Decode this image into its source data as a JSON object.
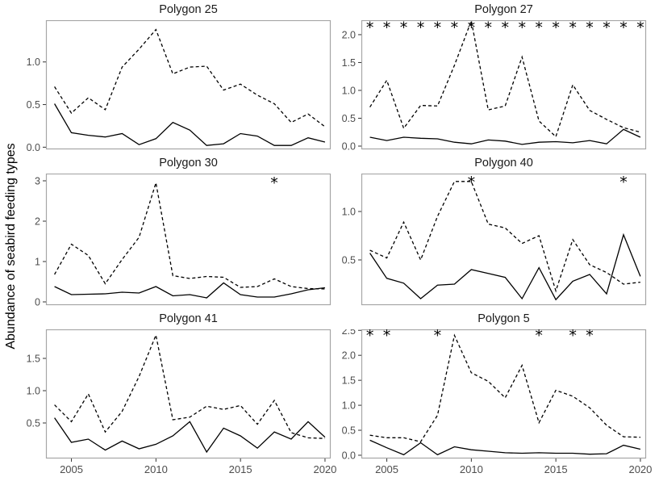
{
  "figure": {
    "background": "#ffffff"
  },
  "chart_data": {
    "type": "line",
    "ylabel": "Abundance of seabird feeding types",
    "x": [
      2004,
      2005,
      2006,
      2007,
      2008,
      2009,
      2010,
      2011,
      2012,
      2013,
      2014,
      2015,
      2016,
      2017,
      2018,
      2019,
      2020
    ],
    "x_ticks": [
      2005,
      2010,
      2015,
      2020
    ],
    "x_tick_labels": [
      "2005",
      "2010",
      "2015",
      "2020"
    ],
    "legend": "none",
    "grid": false,
    "significance_marker": "*",
    "style": {
      "line_color": "#000000",
      "panel_border_color": "#a6a6a6",
      "tick_color": "#333333",
      "tick_label_color": "#4d4d4d",
      "title_color": "#1a1a1a",
      "background": "#ffffff"
    },
    "panels": [
      {
        "title": "Polygon 25",
        "y_ticks": [
          0.0,
          0.5,
          1.0
        ],
        "y_tick_labels": [
          "0.0",
          "0.5",
          "1.0"
        ],
        "ylim": [
          -0.025,
          1.49
        ],
        "asterisk_years": [],
        "asterisk_y": 1.4,
        "series": [
          {
            "name": "dashed",
            "linestyle": "dashed",
            "values": [
              0.71,
              0.4,
              0.58,
              0.44,
              0.94,
              1.15,
              1.38,
              0.86,
              0.94,
              0.95,
              0.67,
              0.74,
              0.61,
              0.51,
              0.29,
              0.39,
              0.24
            ]
          },
          {
            "name": "solid",
            "linestyle": "solid",
            "values": [
              0.51,
              0.17,
              0.14,
              0.12,
              0.16,
              0.03,
              0.1,
              0.29,
              0.2,
              0.02,
              0.04,
              0.16,
              0.13,
              0.02,
              0.02,
              0.11,
              0.06
            ]
          }
        ]
      },
      {
        "title": "Polygon 27",
        "y_ticks": [
          0.0,
          0.5,
          1.0,
          1.5,
          2.0
        ],
        "y_tick_labels": [
          "0.0",
          "0.5",
          "1.0",
          "1.5",
          "2.0"
        ],
        "ylim": [
          -0.058,
          2.26
        ],
        "asterisk_years": [
          2004,
          2005,
          2006,
          2007,
          2008,
          2009,
          2010,
          2011,
          2012,
          2013,
          2014,
          2015,
          2016,
          2017,
          2018,
          2019,
          2020
        ],
        "asterisk_y": 2.14,
        "series": [
          {
            "name": "dashed",
            "linestyle": "dashed",
            "values": [
              0.7,
              1.18,
              0.32,
              0.73,
              0.72,
              1.45,
              2.25,
              0.65,
              0.72,
              1.6,
              0.45,
              0.17,
              1.1,
              0.64,
              0.48,
              0.33,
              0.25
            ]
          },
          {
            "name": "solid",
            "linestyle": "solid",
            "values": [
              0.16,
              0.1,
              0.16,
              0.14,
              0.13,
              0.07,
              0.04,
              0.11,
              0.09,
              0.03,
              0.07,
              0.08,
              0.06,
              0.1,
              0.04,
              0.3,
              0.16
            ]
          }
        ]
      },
      {
        "title": "Polygon 30",
        "y_ticks": [
          0,
          1,
          2,
          3
        ],
        "y_tick_labels": [
          "0",
          "1",
          "2",
          "3"
        ],
        "ylim": [
          -0.08,
          3.18
        ],
        "asterisk_years": [
          2017
        ],
        "asterisk_y": 2.96,
        "series": [
          {
            "name": "dashed",
            "linestyle": "dashed",
            "values": [
              0.68,
              1.43,
              1.15,
              0.45,
              1.05,
              1.6,
              2.95,
              0.65,
              0.58,
              0.63,
              0.61,
              0.36,
              0.38,
              0.57,
              0.38,
              0.33,
              0.32
            ]
          },
          {
            "name": "solid",
            "linestyle": "solid",
            "values": [
              0.38,
              0.18,
              0.19,
              0.2,
              0.24,
              0.22,
              0.38,
              0.15,
              0.18,
              0.1,
              0.47,
              0.18,
              0.12,
              0.12,
              0.2,
              0.3,
              0.35
            ]
          }
        ]
      },
      {
        "title": "Polygon 40",
        "y_ticks": [
          0.5,
          1.0
        ],
        "y_tick_labels": [
          "0.5",
          "1.0"
        ],
        "ylim": [
          0.033,
          1.392
        ],
        "asterisk_years": [
          2010,
          2019
        ],
        "asterisk_y": 1.31,
        "series": [
          {
            "name": "dashed",
            "linestyle": "dashed",
            "values": [
              0.6,
              0.52,
              0.89,
              0.5,
              0.95,
              1.31,
              1.31,
              0.87,
              0.83,
              0.67,
              0.75,
              0.18,
              0.71,
              0.45,
              0.37,
              0.25,
              0.27
            ]
          },
          {
            "name": "solid",
            "linestyle": "solid",
            "values": [
              0.57,
              0.31,
              0.26,
              0.1,
              0.24,
              0.25,
              0.4,
              0.36,
              0.32,
              0.1,
              0.42,
              0.09,
              0.28,
              0.35,
              0.15,
              0.76,
              0.33
            ]
          }
        ]
      },
      {
        "title": "Polygon 41",
        "y_ticks": [
          0.5,
          1.0,
          1.5
        ],
        "y_tick_labels": [
          "0.5",
          "1.0",
          "1.5"
        ],
        "ylim": [
          -0.05,
          1.95
        ],
        "asterisk_years": [],
        "asterisk_y": 1.85,
        "series": [
          {
            "name": "dashed",
            "linestyle": "dashed",
            "values": [
              0.78,
              0.52,
              0.95,
              0.36,
              0.68,
              1.22,
              1.86,
              0.55,
              0.59,
              0.76,
              0.71,
              0.77,
              0.48,
              0.85,
              0.35,
              0.27,
              0.26
            ]
          },
          {
            "name": "solid",
            "linestyle": "solid",
            "values": [
              0.58,
              0.2,
              0.25,
              0.08,
              0.22,
              0.1,
              0.17,
              0.3,
              0.52,
              0.05,
              0.42,
              0.3,
              0.11,
              0.36,
              0.25,
              0.52,
              0.28
            ]
          }
        ]
      },
      {
        "title": "Polygon 5",
        "y_ticks": [
          0.0,
          0.5,
          1.0,
          1.5,
          2.0,
          2.5
        ],
        "y_tick_labels": [
          "0.0",
          "0.5",
          "1.0",
          "1.5",
          "2.0",
          "2.5"
        ],
        "ylim": [
          -0.065,
          2.52
        ],
        "asterisk_years": [
          2004,
          2005,
          2008,
          2014,
          2016,
          2017
        ],
        "asterisk_y": 2.41,
        "series": [
          {
            "name": "dashed",
            "linestyle": "dashed",
            "values": [
              0.4,
              0.35,
              0.35,
              0.27,
              0.8,
              2.4,
              1.65,
              1.48,
              1.15,
              1.8,
              0.65,
              1.3,
              1.18,
              0.95,
              0.6,
              0.37,
              0.36
            ]
          },
          {
            "name": "solid",
            "linestyle": "solid",
            "values": [
              0.3,
              0.15,
              0.01,
              0.25,
              0.01,
              0.17,
              0.11,
              0.08,
              0.05,
              0.04,
              0.05,
              0.04,
              0.04,
              0.02,
              0.03,
              0.2,
              0.12
            ]
          }
        ]
      }
    ]
  }
}
